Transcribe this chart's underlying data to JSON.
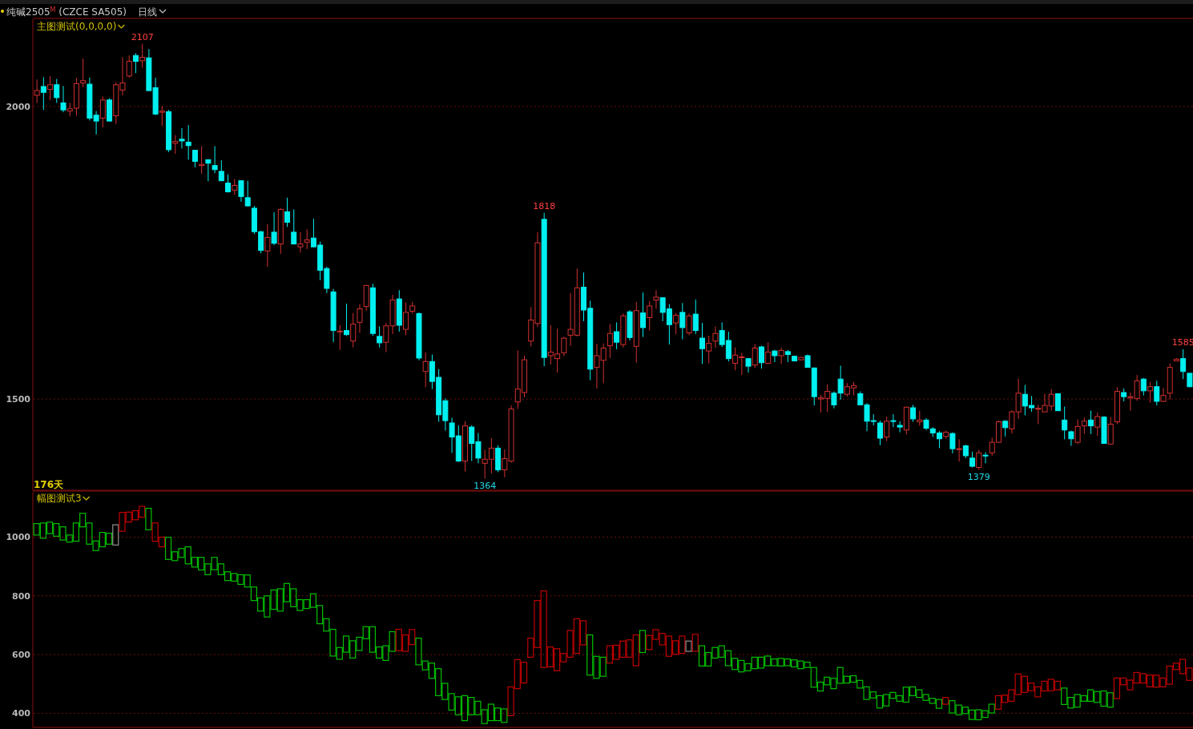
{
  "chart_data": [
    {
      "type": "candlestick",
      "title": "纯碱2505$^{M}$ (CZCE SA505)",
      "subtitle": "日线",
      "annotations": [
        "主图测试(0,0,0,0)",
        "176天",
        "2107",
        "1818",
        "1364",
        "1585",
        "1379"
      ],
      "ylim": [
        1344,
        2149
      ],
      "yticks": [
        2000,
        1500
      ],
      "grid": "y",
      "categories": [
        null,
        null,
        null,
        null,
        null,
        null,
        null,
        null,
        null,
        null,
        null,
        null,
        null,
        null,
        null,
        null,
        null,
        null,
        null,
        null,
        null,
        null,
        null,
        null,
        null,
        null,
        null,
        null,
        null,
        null,
        null,
        null,
        null,
        null,
        null,
        null,
        null,
        null,
        null,
        null,
        null,
        null,
        null,
        null,
        null,
        null,
        null,
        null,
        null,
        null,
        null,
        null,
        null,
        null,
        null,
        null,
        null,
        null,
        null,
        null,
        null,
        null,
        null,
        null,
        null,
        null,
        null,
        null,
        null,
        null,
        null,
        null,
        null,
        null,
        null,
        null,
        null,
        null,
        null,
        null,
        null,
        null,
        null,
        null,
        null,
        null,
        null,
        null,
        null,
        null,
        null,
        null,
        null,
        null,
        null,
        null,
        null,
        null,
        null,
        null,
        null,
        null,
        null,
        null,
        null,
        null,
        null,
        null,
        null,
        null,
        null,
        null,
        null,
        null,
        null,
        null,
        null,
        null,
        null,
        null,
        null,
        null,
        null,
        null,
        null,
        null,
        null,
        null,
        null,
        null,
        null,
        null,
        null,
        null,
        null,
        null,
        null,
        null,
        null,
        null,
        null,
        null,
        null,
        null,
        null,
        null,
        null,
        null,
        null,
        null,
        null,
        null,
        null,
        null,
        null,
        null,
        null,
        null,
        null,
        null,
        null,
        null,
        null,
        null,
        null,
        null,
        null,
        null,
        null,
        null,
        null,
        null,
        null,
        null,
        null,
        null
      ],
      "ohlc": [
        [
          2019,
          2046,
          2006,
          2027
        ],
        [
          2034,
          2050,
          1994,
          2024
        ],
        [
          2029,
          2052,
          2011,
          2037
        ],
        [
          2037,
          2047,
          2006,
          2015
        ],
        [
          2006,
          2035,
          1990,
          1994
        ],
        [
          1992,
          2006,
          1983,
          1996
        ],
        [
          1997,
          2049,
          1984,
          2039
        ],
        [
          2040,
          2082,
          2033,
          2044
        ],
        [
          2038,
          2049,
          1976,
          1980
        ],
        [
          1985,
          1992,
          1952,
          1975
        ],
        [
          1980,
          2017,
          1964,
          2011
        ],
        [
          2011,
          2014,
          1974,
          1975
        ],
        [
          1984,
          2041,
          1970,
          2037
        ],
        [
          2028,
          2084,
          2019,
          2040
        ],
        [
          2052,
          2087,
          2049,
          2077
        ],
        [
          2087,
          2091,
          2057,
          2077
        ],
        [
          2078,
          2107,
          2066,
          2084
        ],
        [
          2083,
          2098,
          2027,
          2027
        ],
        [
          2032,
          2049,
          1985,
          1987
        ],
        [
          1990,
          2001,
          1967,
          1992
        ],
        [
          1991,
          1994,
          1922,
          1926
        ],
        [
          1937,
          1951,
          1919,
          1940
        ],
        [
          1944,
          1963,
          1928,
          1941
        ],
        [
          1939,
          1968,
          1909,
          1933
        ],
        [
          1925,
          1926,
          1896,
          1906
        ],
        [
          1899,
          1932,
          1885,
          1901
        ],
        [
          1909,
          1909,
          1872,
          1903
        ],
        [
          1899,
          1932,
          1886,
          1892
        ],
        [
          1889,
          1908,
          1872,
          1873
        ],
        [
          1869,
          1884,
          1853,
          1854
        ],
        [
          1857,
          1876,
          1849,
          1865
        ],
        [
          1873,
          1874,
          1837,
          1846
        ],
        [
          1844,
          1873,
          1829,
          1830
        ],
        [
          1826,
          1830,
          1782,
          1786
        ],
        [
          1786,
          1787,
          1749,
          1754
        ],
        [
          1753,
          1799,
          1726,
          1776
        ],
        [
          1785,
          1819,
          1763,
          1766
        ],
        [
          1765,
          1826,
          1748,
          1824
        ],
        [
          1820,
          1844,
          1794,
          1802
        ],
        [
          1785,
          1824,
          1764,
          1765
        ],
        [
          1760,
          1785,
          1750,
          1765
        ],
        [
          1768,
          1790,
          1756,
          1772
        ],
        [
          1775,
          1808,
          1759,
          1760
        ],
        [
          1763,
          1769,
          1703,
          1720
        ],
        [
          1723,
          1726,
          1681,
          1689
        ],
        [
          1683,
          1688,
          1597,
          1617
        ],
        [
          1615,
          1626,
          1584,
          1616
        ],
        [
          1617,
          1663,
          1608,
          1610
        ],
        [
          1599,
          1647,
          1588,
          1628
        ],
        [
          1631,
          1662,
          1613,
          1654
        ],
        [
          1658,
          1695,
          1651,
          1694
        ],
        [
          1690,
          1697,
          1608,
          1612
        ],
        [
          1607,
          1624,
          1588,
          1596
        ],
        [
          1597,
          1630,
          1580,
          1625
        ],
        [
          1625,
          1678,
          1611,
          1669
        ],
        [
          1671,
          1686,
          1615,
          1626
        ],
        [
          1619,
          1665,
          1609,
          1648
        ],
        [
          1650,
          1666,
          1646,
          1659
        ],
        [
          1646,
          1648,
          1566,
          1570
        ],
        [
          1547,
          1580,
          1520,
          1564
        ],
        [
          1564,
          1576,
          1517,
          1530
        ],
        [
          1537,
          1551,
          1461,
          1473
        ],
        [
          1497,
          1501,
          1446,
          1463
        ],
        [
          1459,
          1468,
          1408,
          1435
        ],
        [
          1437,
          1455,
          1392,
          1394
        ],
        [
          1394,
          1462,
          1376,
          1454
        ],
        [
          1452,
          1455,
          1394,
          1424
        ],
        [
          1427,
          1442,
          1390,
          1399
        ],
        [
          1390,
          1413,
          1364,
          1397
        ],
        [
          1397,
          1433,
          1373,
          1416
        ],
        [
          1416,
          1421,
          1375,
          1379
        ],
        [
          1379,
          1414,
          1366,
          1398
        ],
        [
          1394,
          1489,
          1391,
          1483
        ],
        [
          1495,
          1583,
          1483,
          1517
        ],
        [
          1511,
          1574,
          1503,
          1567
        ],
        [
          1599,
          1657,
          1590,
          1635
        ],
        [
          1629,
          1785,
          1623,
          1767
        ],
        [
          1807,
          1818,
          1556,
          1571
        ],
        [
          1574,
          1626,
          1559,
          1580
        ],
        [
          1569,
          1620,
          1545,
          1577
        ],
        [
          1579,
          1606,
          1573,
          1604
        ],
        [
          1609,
          1681,
          1591,
          1619
        ],
        [
          1609,
          1723,
          1607,
          1690
        ],
        [
          1691,
          1716,
          1633,
          1652
        ],
        [
          1655,
          1668,
          1532,
          1551
        ],
        [
          1554,
          1594,
          1518,
          1574
        ],
        [
          1566,
          1595,
          1527,
          1587
        ],
        [
          1591,
          1628,
          1570,
          1612
        ],
        [
          1615,
          1631,
          1585,
          1597
        ],
        [
          1593,
          1646,
          1588,
          1642
        ],
        [
          1649,
          1652,
          1600,
          1605
        ],
        [
          1590,
          1666,
          1562,
          1651
        ],
        [
          1647,
          1682,
          1606,
          1622
        ],
        [
          1639,
          1667,
          1617,
          1659
        ],
        [
          1669,
          1686,
          1654,
          1674
        ],
        [
          1673,
          1674,
          1633,
          1648
        ],
        [
          1654,
          1662,
          1593,
          1627
        ],
        [
          1630,
          1647,
          1611,
          1643
        ],
        [
          1648,
          1664,
          1602,
          1622
        ],
        [
          1613,
          1646,
          1609,
          1642
        ],
        [
          1645,
          1670,
          1611,
          1617
        ],
        [
          1604,
          1630,
          1560,
          1586
        ],
        [
          1582,
          1608,
          1561,
          1595
        ],
        [
          1599,
          1624,
          1587,
          1612
        ],
        [
          1617,
          1631,
          1589,
          1593
        ],
        [
          1600,
          1615,
          1564,
          1569
        ],
        [
          1561,
          1588,
          1549,
          1575
        ],
        [
          1571,
          1579,
          1541,
          1572
        ],
        [
          1569,
          1570,
          1545,
          1556
        ],
        [
          1558,
          1594,
          1553,
          1587
        ],
        [
          1589,
          1591,
          1552,
          1562
        ],
        [
          1561,
          1597,
          1560,
          1580
        ],
        [
          1582,
          1584,
          1563,
          1574
        ],
        [
          1574,
          1588,
          1560,
          1583
        ],
        [
          1581,
          1584,
          1563,
          1576
        ],
        [
          1573,
          1574,
          1565,
          1565
        ],
        [
          1567,
          1572,
          1566,
          1571
        ],
        [
          1574,
          1576,
          1554,
          1554
        ],
        [
          1553,
          1554,
          1489,
          1504
        ],
        [
          1500,
          1507,
          1477,
          1502
        ],
        [
          1501,
          1525,
          1478,
          1513
        ],
        [
          1510,
          1513,
          1484,
          1490
        ],
        [
          1534,
          1557,
          1499,
          1510
        ],
        [
          1508,
          1527,
          1504,
          1521
        ],
        [
          1519,
          1529,
          1506,
          1523
        ],
        [
          1509,
          1513,
          1490,
          1490
        ],
        [
          1490,
          1493,
          1445,
          1462
        ],
        [
          1463,
          1474,
          1455,
          1462
        ],
        [
          1459,
          1463,
          1421,
          1433
        ],
        [
          1435,
          1470,
          1428,
          1462
        ],
        [
          1463,
          1474,
          1452,
          1462
        ],
        [
          1455,
          1462,
          1443,
          1452
        ],
        [
          1447,
          1487,
          1439,
          1486
        ],
        [
          1485,
          1490,
          1461,
          1466
        ],
        [
          1461,
          1480,
          1454,
          1464
        ],
        [
          1464,
          1467,
          1447,
          1450
        ],
        [
          1449,
          1452,
          1435,
          1442
        ],
        [
          1442,
          1445,
          1416,
          1432
        ],
        [
          1436,
          1446,
          1432,
          1443
        ],
        [
          1441,
          1443,
          1407,
          1415
        ],
        [
          1414,
          1431,
          1393,
          1415
        ],
        [
          1420,
          1422,
          1399,
          1403
        ],
        [
          1399,
          1410,
          1383,
          1385
        ],
        [
          1383,
          1413,
          1379,
          1408
        ],
        [
          1404,
          1409,
          1390,
          1403
        ],
        [
          1408,
          1434,
          1403,
          1426
        ],
        [
          1426,
          1463,
          1425,
          1461
        ],
        [
          1462,
          1464,
          1436,
          1451
        ],
        [
          1449,
          1481,
          1441,
          1478
        ],
        [
          1478,
          1535,
          1466,
          1510
        ],
        [
          1508,
          1524,
          1472,
          1488
        ],
        [
          1489,
          1505,
          1478,
          1485
        ],
        [
          1483,
          1490,
          1457,
          1484
        ],
        [
          1478,
          1509,
          1478,
          1489
        ],
        [
          1488,
          1517,
          1480,
          1508
        ],
        [
          1509,
          1509,
          1480,
          1480
        ],
        [
          1464,
          1487,
          1431,
          1447
        ],
        [
          1444,
          1446,
          1420,
          1432
        ],
        [
          1426,
          1465,
          1423,
          1453
        ],
        [
          1454,
          1468,
          1440,
          1462
        ],
        [
          1464,
          1480,
          1440,
          1454
        ],
        [
          1452,
          1477,
          1437,
          1470
        ],
        [
          1469,
          1471,
          1424,
          1424
        ],
        [
          1423,
          1469,
          1422,
          1457
        ],
        [
          1461,
          1520,
          1457,
          1513
        ],
        [
          1511,
          1518,
          1496,
          1504
        ],
        [
          1502,
          1511,
          1480,
          1504
        ],
        [
          1501,
          1541,
          1497,
          1531
        ],
        [
          1534,
          1536,
          1506,
          1514
        ],
        [
          1514,
          1529,
          1494,
          1521
        ],
        [
          1521,
          1531,
          1489,
          1496
        ],
        [
          1496,
          1519,
          1495,
          1506
        ],
        [
          1510,
          1561,
          1499,
          1554
        ],
        [
          1565,
          1570,
          1565,
          1568
        ],
        [
          1569,
          1585,
          1534,
          1547
        ],
        [
          1544,
          1544,
          1520,
          1521
        ]
      ],
      "colors": [
        "#d03030",
        "#00f0f0",
        "#d03030",
        "#00f0f0",
        "#00f0f0",
        "#d03030",
        "#d03030",
        "#d03030",
        "#00f0f0",
        "#00f0f0",
        "#d03030",
        "#00f0f0",
        "#d03030",
        "#d03030",
        "#d03030",
        "#00f0f0",
        "#d03030",
        "#00f0f0",
        "#00f0f0",
        "#d03030",
        "#00f0f0",
        "#d03030",
        "#00f0f0",
        "#00f0f0",
        "#00f0f0",
        "#d03030",
        "#00f0f0",
        "#00f0f0",
        "#00f0f0",
        "#00f0f0",
        "#d03030",
        "#00f0f0",
        "#00f0f0",
        "#00f0f0",
        "#00f0f0",
        "#d03030",
        "#00f0f0",
        "#d03030",
        "#00f0f0",
        "#00f0f0",
        "#d03030",
        "#d03030",
        "#00f0f0",
        "#00f0f0",
        "#00f0f0",
        "#00f0f0",
        "#d03030",
        "#00f0f0",
        "#d03030",
        "#d03030",
        "#d03030",
        "#00f0f0",
        "#00f0f0",
        "#d03030",
        "#d03030",
        "#00f0f0",
        "#d03030",
        "#d03030",
        "#00f0f0",
        "#d03030",
        "#00f0f0",
        "#00f0f0",
        "#00f0f0",
        "#00f0f0",
        "#00f0f0",
        "#d03030",
        "#00f0f0",
        "#00f0f0",
        "#d03030",
        "#d03030",
        "#00f0f0",
        "#d03030",
        "#d03030",
        "#d03030",
        "#d03030",
        "#d03030",
        "#d03030",
        "#00f0f0",
        "#d03030",
        "#d03030",
        "#d03030",
        "#d03030",
        "#d03030",
        "#00f0f0",
        "#00f0f0",
        "#d03030",
        "#d03030",
        "#d03030",
        "#00f0f0",
        "#d03030",
        "#00f0f0",
        "#d03030",
        "#00f0f0",
        "#d03030",
        "#d03030",
        "#00f0f0",
        "#00f0f0",
        "#d03030",
        "#00f0f0",
        "#d03030",
        "#00f0f0",
        "#00f0f0",
        "#d03030",
        "#d03030",
        "#00f0f0",
        "#00f0f0",
        "#d03030",
        "#d03030",
        "#00f0f0",
        "#d03030",
        "#00f0f0",
        "#d03030",
        "#00f0f0",
        "#d03030",
        "#00f0f0",
        "#00f0f0",
        "#d03030",
        "#00f0f0",
        "#00f0f0",
        "#d03030",
        "#d03030",
        "#00f0f0",
        "#00f0f0",
        "#d03030",
        "#d03030",
        "#00f0f0",
        "#00f0f0",
        "#00f0f0",
        "#00f0f0",
        "#d03030",
        "#00f0f0",
        "#00f0f0",
        "#d03030",
        "#00f0f0",
        "#d03030",
        "#00f0f0",
        "#00f0f0",
        "#00f0f0",
        "#d03030",
        "#00f0f0",
        "#d03030",
        "#00f0f0",
        "#00f0f0",
        "#d03030",
        "#00f0f0",
        "#d03030",
        "#d03030",
        "#00f0f0",
        "#d03030",
        "#d03030",
        "#00f0f0",
        "#00f0f0",
        "#d03030",
        "#d03030",
        "#d03030",
        "#00f0f0",
        "#00f0f0",
        "#00f0f0",
        "#d03030",
        "#d03030",
        "#00f0f0",
        "#d03030",
        "#00f0f0",
        "#d03030",
        "#d03030",
        "#00f0f0",
        "#d03030",
        "#d03030",
        "#00f0f0",
        "#d03030",
        "#00f0f0",
        "#d03030",
        "#d03030",
        "#d03030",
        "#00f0f0",
        "#00f0f0"
      ]
    },
    {
      "type": "bar",
      "title": "幅图测试3",
      "ylim": [
        352,
        1154
      ],
      "yticks": [
        1000,
        800,
        600,
        400
      ],
      "grid": "y",
      "categories": [
        null,
        null,
        null,
        null,
        null,
        null,
        null,
        null,
        null,
        null,
        null,
        null,
        null,
        null,
        null,
        null,
        null,
        null,
        null,
        null,
        null,
        null,
        null,
        null,
        null,
        null,
        null,
        null,
        null,
        null,
        null,
        null,
        null,
        null,
        null,
        null,
        null,
        null,
        null,
        null,
        null,
        null,
        null,
        null,
        null,
        null,
        null,
        null,
        null,
        null,
        null,
        null,
        null,
        null,
        null,
        null,
        null,
        null,
        null,
        null,
        null,
        null,
        null,
        null,
        null,
        null,
        null,
        null,
        null,
        null,
        null,
        null,
        null,
        null,
        null,
        null,
        null,
        null,
        null,
        null,
        null,
        null,
        null,
        null,
        null,
        null,
        null,
        null,
        null,
        null,
        null,
        null,
        null,
        null,
        null,
        null,
        null,
        null,
        null,
        null,
        null,
        null,
        null,
        null,
        null,
        null,
        null,
        null,
        null,
        null,
        null,
        null,
        null,
        null,
        null,
        null,
        null,
        null,
        null,
        null,
        null,
        null,
        null,
        null,
        null,
        null,
        null,
        null,
        null,
        null,
        null,
        null,
        null,
        null,
        null,
        null,
        null,
        null,
        null,
        null,
        null,
        null,
        null,
        null,
        null,
        null,
        null,
        null,
        null,
        null,
        null,
        null,
        null,
        null,
        null,
        null,
        null,
        null,
        null,
        null,
        null,
        null,
        null,
        null,
        null,
        null,
        null,
        null,
        null,
        null,
        null,
        null,
        null,
        null,
        null,
        null
      ],
      "base": [
        1007,
        996,
        1012,
        1003,
        990,
        983,
        986,
        1035,
        976,
        954,
        967,
        976,
        973,
        1020,
        1051,
        1059,
        1068,
        1025,
        986,
        967,
        924,
        920,
        931,
        909,
        898,
        888,
        872,
        889,
        872,
        852,
        850,
        839,
        830,
        784,
        748,
        728,
        754,
        748,
        780,
        763,
        750,
        757,
        761,
        705,
        680,
        595,
        584,
        608,
        588,
        614,
        654,
        608,
        588,
        580,
        611,
        613,
        611,
        634,
        565,
        548,
        519,
        460,
        447,
        411,
        395,
        375,
        395,
        395,
        365,
        375,
        375,
        369,
        392,
        484,
        503,
        591,
        624,
        556,
        558,
        545,
        575,
        591,
        604,
        633,
        530,
        519,
        526,
        571,
        584,
        591,
        591,
        562,
        607,
        617,
        652,
        633,
        594,
        601,
        604,
        611,
        611,
        561,
        561,
        588,
        591,
        562,
        549,
        541,
        545,
        552,
        554,
        562,
        562,
        561,
        562,
        558,
        552,
        556,
        489,
        476,
        497,
        484,
        502,
        503,
        506,
        486,
        447,
        452,
        418,
        425,
        451,
        441,
        438,
        460,
        454,
        444,
        434,
        417,
        431,
        401,
        395,
        399,
        379,
        378,
        386,
        401,
        414,
        437,
        441,
        464,
        471,
        477,
        456,
        476,
        477,
        480,
        430,
        418,
        421,
        441,
        441,
        437,
        424,
        421,
        450,
        497,
        480,
        503,
        503,
        490,
        489,
        490,
        499,
        549,
        535,
        512
      ],
      "values": [
        39,
        52,
        39,
        43,
        45,
        24,
        62,
        46,
        72,
        33,
        49,
        37,
        69,
        64,
        34,
        31,
        37,
        73,
        62,
        33,
        75,
        30,
        30,
        58,
        33,
        43,
        37,
        42,
        37,
        30,
        26,
        33,
        41,
        46,
        45,
        72,
        66,
        76,
        62,
        61,
        37,
        30,
        46,
        62,
        42,
        91,
        40,
        55,
        59,
        45,
        41,
        87,
        38,
        50,
        67,
        73,
        56,
        51,
        91,
        30,
        52,
        92,
        55,
        56,
        61,
        85,
        59,
        46,
        47,
        56,
        43,
        46,
        98,
        99,
        71,
        65,
        160,
        261,
        68,
        75,
        29,
        91,
        118,
        82,
        137,
        75,
        65,
        59,
        48,
        55,
        59,
        105,
        75,
        48,
        33,
        39,
        69,
        46,
        59,
        35,
        58,
        69,
        46,
        36,
        39,
        51,
        38,
        39,
        24,
        39,
        37,
        33,
        23,
        26,
        23,
        24,
        26,
        18,
        67,
        30,
        26,
        35,
        54,
        23,
        22,
        26,
        43,
        21,
        42,
        39,
        20,
        19,
        51,
        30,
        26,
        20,
        17,
        30,
        23,
        42,
        33,
        22,
        32,
        34,
        23,
        30,
        46,
        25,
        39,
        70,
        55,
        26,
        34,
        33,
        39,
        29,
        56,
        36,
        43,
        19,
        39,
        37,
        52,
        49,
        70,
        23,
        33,
        36,
        32,
        40,
        41,
        30,
        62,
        22,
        49,
        42
      ],
      "colors": [
        "#00c000",
        "#00c000",
        "#00c000",
        "#00c000",
        "#00c000",
        "#00c000",
        "#00c000",
        "#00c000",
        "#00c000",
        "#00c000",
        "#00c000",
        "#00c000",
        "#909090",
        "#c00000",
        "#c00000",
        "#c00000",
        "#c00000",
        "#00c000",
        "#c00000",
        "#c00000",
        "#00c000",
        "#00c000",
        "#00c000",
        "#00c000",
        "#00c000",
        "#00c000",
        "#00c000",
        "#00c000",
        "#00c000",
        "#00c000",
        "#00c000",
        "#00c000",
        "#00c000",
        "#00c000",
        "#00c000",
        "#00c000",
        "#00c000",
        "#00c000",
        "#00c000",
        "#00c000",
        "#00c000",
        "#00c000",
        "#00c000",
        "#00c000",
        "#00c000",
        "#00c000",
        "#00c000",
        "#00c000",
        "#00c000",
        "#00c000",
        "#00c000",
        "#00c000",
        "#00c000",
        "#00c000",
        "#00c000",
        "#c00000",
        "#c00000",
        "#c00000",
        "#00c000",
        "#00c000",
        "#00c000",
        "#00c000",
        "#00c000",
        "#00c000",
        "#00c000",
        "#00c000",
        "#00c000",
        "#00c000",
        "#00c000",
        "#00c000",
        "#00c000",
        "#00c000",
        "#c00000",
        "#c00000",
        "#c00000",
        "#c00000",
        "#c00000",
        "#c00000",
        "#c00000",
        "#c00000",
        "#c00000",
        "#c00000",
        "#c00000",
        "#c00000",
        "#00c000",
        "#00c000",
        "#00c000",
        "#c00000",
        "#c00000",
        "#c00000",
        "#c00000",
        "#c00000",
        "#00c000",
        "#c00000",
        "#c00000",
        "#c00000",
        "#c00000",
        "#c00000",
        "#c00000",
        "#909090",
        "#c00000",
        "#00c000",
        "#00c000",
        "#00c000",
        "#00c000",
        "#00c000",
        "#00c000",
        "#00c000",
        "#00c000",
        "#00c000",
        "#00c000",
        "#00c000",
        "#00c000",
        "#00c000",
        "#00c000",
        "#00c000",
        "#00c000",
        "#00c000",
        "#00c000",
        "#00c000",
        "#00c000",
        "#00c000",
        "#00c000",
        "#00c000",
        "#00c000",
        "#00c000",
        "#00c000",
        "#00c000",
        "#00c000",
        "#00c000",
        "#00c000",
        "#00c000",
        "#00c000",
        "#00c000",
        "#00c000",
        "#00c000",
        "#00c000",
        "#00c000",
        "#c00000",
        "#00c000",
        "#00c000",
        "#00c000",
        "#00c000",
        "#00c000",
        "#00c000",
        "#00c000",
        "#c00000",
        "#c00000",
        "#c00000",
        "#c00000",
        "#c00000",
        "#c00000",
        "#c00000",
        "#c00000",
        "#c00000",
        "#c00000",
        "#00c000",
        "#00c000",
        "#00c000",
        "#00c000",
        "#00c000",
        "#00c000",
        "#00c000",
        "#00c000",
        "#c00000",
        "#c00000",
        "#c00000",
        "#c00000",
        "#c00000",
        "#c00000",
        "#c00000",
        "#c00000",
        "#c00000",
        "#c00000",
        "#c00000",
        "#c00000"
      ]
    }
  ]
}
